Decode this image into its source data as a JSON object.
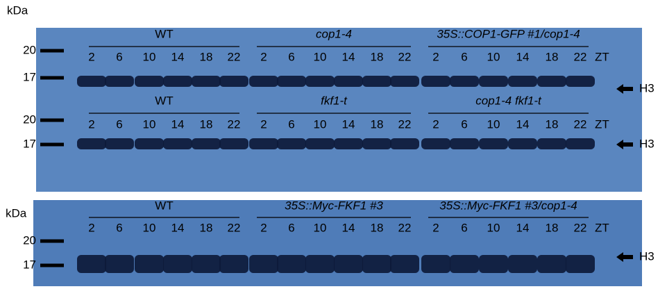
{
  "panels": [
    {
      "unit_label": "kDa",
      "rows": [
        {
          "groups": [
            "WT",
            "cop1-4",
            "35S::COP1-GFP #1/cop1-4"
          ],
          "timepoints": [
            "2",
            "6",
            "10",
            "14",
            "18",
            "22"
          ],
          "time_label": "ZT",
          "markers": [
            "20",
            "17"
          ],
          "band_label": "H3"
        },
        {
          "groups": [
            "WT",
            "fkf1-t",
            "cop1-4 fkf1-t"
          ],
          "timepoints": [
            "2",
            "6",
            "10",
            "14",
            "18",
            "22"
          ],
          "time_label": "ZT",
          "markers": [
            "20",
            "17"
          ],
          "band_label": "H3"
        }
      ]
    },
    {
      "unit_label": "kDa",
      "rows": [
        {
          "groups": [
            "WT",
            "35S::Myc-FKF1 #3",
            "35S::Myc-FKF1 #3/cop1-4"
          ],
          "timepoints": [
            "2",
            "6",
            "10",
            "14",
            "18",
            "22"
          ],
          "time_label": "ZT",
          "markers": [
            "20",
            "17"
          ],
          "band_label": "H3"
        }
      ]
    }
  ]
}
